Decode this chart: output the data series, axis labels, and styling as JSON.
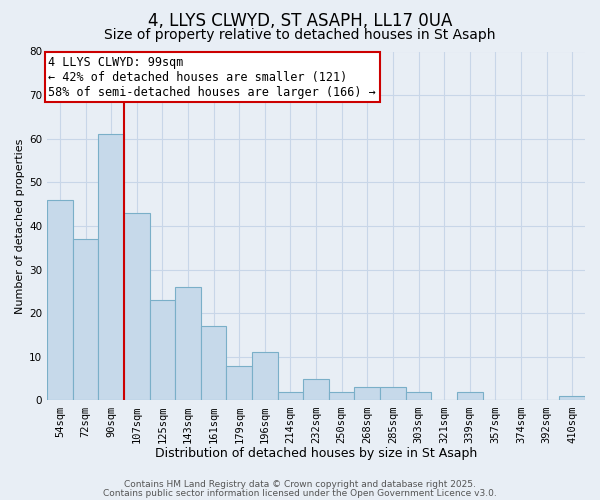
{
  "title": "4, LLYS CLWYD, ST ASAPH, LL17 0UA",
  "subtitle": "Size of property relative to detached houses in St Asaph",
  "xlabel": "Distribution of detached houses by size in St Asaph",
  "ylabel": "Number of detached properties",
  "bar_labels": [
    "54sqm",
    "72sqm",
    "90sqm",
    "107sqm",
    "125sqm",
    "143sqm",
    "161sqm",
    "179sqm",
    "196sqm",
    "214sqm",
    "232sqm",
    "250sqm",
    "268sqm",
    "285sqm",
    "303sqm",
    "321sqm",
    "339sqm",
    "357sqm",
    "374sqm",
    "392sqm",
    "410sqm"
  ],
  "bar_values": [
    46,
    37,
    61,
    43,
    23,
    26,
    17,
    8,
    11,
    2,
    5,
    2,
    3,
    3,
    2,
    0,
    2,
    0,
    0,
    0,
    1
  ],
  "bar_color": "#c6d9ea",
  "bar_edge_color": "#7aafc8",
  "vline_x_index": 2.5,
  "vline_color": "#cc0000",
  "annotation_text": "4 LLYS CLWYD: 99sqm\n← 42% of detached houses are smaller (121)\n58% of semi-detached houses are larger (166) →",
  "annotation_box_facecolor": "#ffffff",
  "annotation_box_edgecolor": "#cc0000",
  "ylim": [
    0,
    80
  ],
  "yticks": [
    0,
    10,
    20,
    30,
    40,
    50,
    60,
    70,
    80
  ],
  "grid_color": "#c8d6e8",
  "background_color": "#e8eef5",
  "footer_line1": "Contains HM Land Registry data © Crown copyright and database right 2025.",
  "footer_line2": "Contains public sector information licensed under the Open Government Licence v3.0.",
  "title_fontsize": 12,
  "subtitle_fontsize": 10,
  "xlabel_fontsize": 9,
  "ylabel_fontsize": 8,
  "tick_fontsize": 7.5,
  "annotation_fontsize": 8.5,
  "footer_fontsize": 6.5
}
